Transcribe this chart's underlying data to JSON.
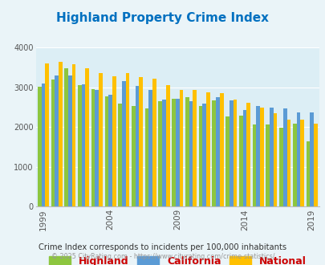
{
  "title": "Highland Property Crime Index",
  "years": [
    1999,
    2000,
    2001,
    2002,
    2003,
    2004,
    2005,
    2006,
    2007,
    2008,
    2009,
    2010,
    2011,
    2012,
    2013,
    2014,
    2015,
    2016,
    2017,
    2018,
    2019
  ],
  "highland": [
    3020,
    3190,
    3480,
    3050,
    2960,
    2780,
    2590,
    2540,
    2480,
    2650,
    2720,
    2750,
    2540,
    2680,
    2270,
    2300,
    2070,
    2060,
    1980,
    2080,
    1640
  ],
  "california": [
    3100,
    3310,
    3300,
    3070,
    2940,
    2820,
    3150,
    3040,
    2940,
    2700,
    2720,
    2650,
    2600,
    2750,
    2670,
    2430,
    2540,
    2490,
    2480,
    2380,
    2380
  ],
  "national": [
    3600,
    3640,
    3580,
    3490,
    3360,
    3280,
    3360,
    3260,
    3220,
    3050,
    2940,
    2940,
    2870,
    2860,
    2690,
    2610,
    2490,
    2360,
    2190,
    2200,
    2090
  ],
  "highland_color": "#8dc63f",
  "california_color": "#5b9bd5",
  "national_color": "#ffc000",
  "background_color": "#eaf4f8",
  "plot_bg_color": "#dceef5",
  "title_color": "#0070c0",
  "legend_label_color": "#cc0000",
  "subtitle_color": "#333333",
  "footer_color": "#999999",
  "subtitle": "Crime Index corresponds to incidents per 100,000 inhabitants",
  "footer": "© 2025 CityRating.com - https://www.cityrating.com/crime-statistics/",
  "ylim": [
    0,
    4000
  ],
  "yticks": [
    0,
    1000,
    2000,
    3000,
    4000
  ],
  "xtick_years": [
    1999,
    2004,
    2009,
    2014,
    2019
  ],
  "bar_width": 0.28,
  "legend_labels": [
    "Highland",
    "California",
    "National"
  ]
}
